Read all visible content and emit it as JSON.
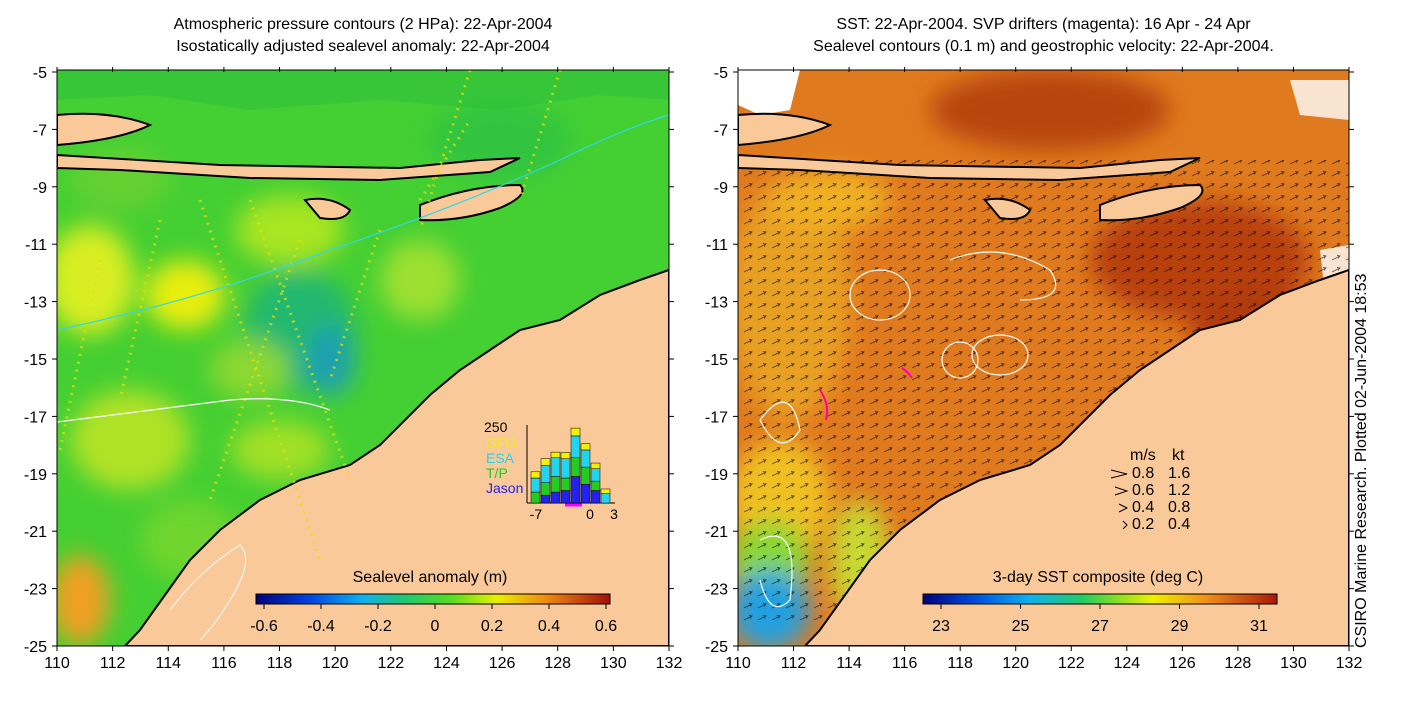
{
  "left_panel": {
    "title_line1": "Atmospheric pressure contours (2 HPa): 22-Apr-2004",
    "title_line2": "Isostatically adjusted sealevel anomaly: 22-Apr-2004",
    "lat_ticks": [
      "-5",
      "-7",
      "-9",
      "-11",
      "-13",
      "-15",
      "-17",
      "-19",
      "-21",
      "-23",
      "-25"
    ],
    "lon_ticks": [
      "110",
      "112",
      "114",
      "116",
      "118",
      "120",
      "122",
      "124",
      "126",
      "128",
      "130",
      "132"
    ],
    "colorbar": {
      "label": "Sealevel anomaly (m)",
      "ticks": [
        "-0.6",
        "-0.4",
        "-0.2",
        "0",
        "0.2",
        "0.4",
        "0.6"
      ]
    },
    "inset": {
      "y_max_label": "250",
      "legend": [
        {
          "label": "GFO",
          "color": "#f2f200"
        },
        {
          "label": "ESA",
          "color": "#22d4ee"
        },
        {
          "label": "T/P",
          "color": "#22cc22"
        },
        {
          "label": "Jason",
          "color": "#2222ee"
        }
      ],
      "x_labels": [
        "-7",
        "0",
        "3"
      ],
      "stacks": [
        [
          20,
          45,
          35,
          0
        ],
        [
          22,
          55,
          40,
          25
        ],
        [
          18,
          60,
          50,
          35
        ],
        [
          20,
          62,
          40,
          40
        ],
        [
          25,
          70,
          60,
          85
        ],
        [
          20,
          55,
          55,
          60
        ],
        [
          18,
          40,
          30,
          40
        ],
        [
          15,
          30,
          0,
          0
        ]
      ],
      "y_max": 250
    }
  },
  "right_panel": {
    "title_line1": "SST: 22-Apr-2004. SVP drifters (magenta): 16 Apr - 24 Apr",
    "title_line2": "Sealevel contours (0.1 m) and geostrophic velocity: 22-Apr-2004.",
    "lat_ticks": [
      "-5",
      "-7",
      "-9",
      "-11",
      "-13",
      "-15",
      "-17",
      "-19",
      "-21",
      "-23",
      "-25"
    ],
    "lon_ticks": [
      "110",
      "112",
      "114",
      "116",
      "118",
      "120",
      "122",
      "124",
      "126",
      "128",
      "130",
      "132"
    ],
    "colorbar": {
      "label": "3-day SST composite (deg C)",
      "ticks": [
        "23",
        "25",
        "27",
        "29",
        "31"
      ]
    },
    "velocity_legend": {
      "header_ms": "m/s",
      "header_kt": "kt",
      "rows": [
        {
          "ms": "0.8",
          "kt": "1.6"
        },
        {
          "ms": "0.6",
          "kt": "1.2"
        },
        {
          "ms": "0.4",
          "kt": "0.8"
        },
        {
          "ms": "0.2",
          "kt": "0.4"
        }
      ]
    }
  },
  "side_note": "CSIRO Marine Research. Plotted 02-Jun-2004 18:53",
  "colors": {
    "land": "#fac99a",
    "ocean_green": "#3fcf33",
    "ocean_warm": "#e07a1e",
    "ocean_hot": "#b8410e"
  }
}
